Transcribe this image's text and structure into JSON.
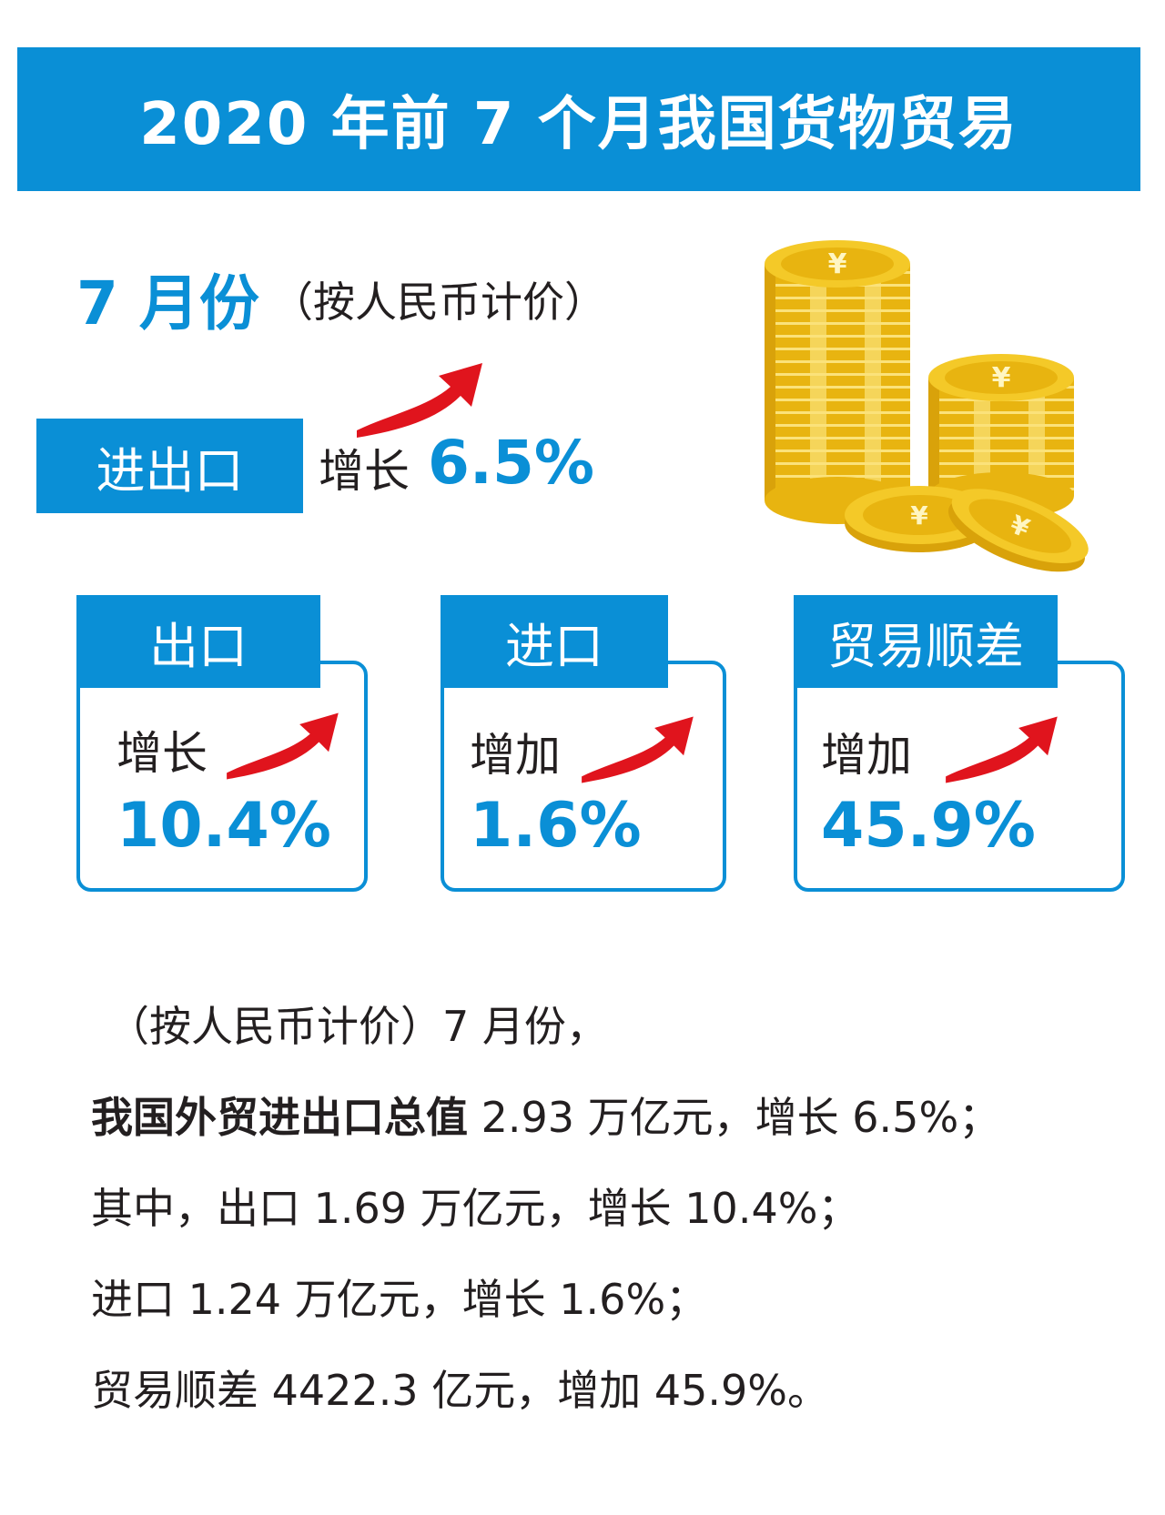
{
  "title": "2020 年前 7 个月我国货物贸易",
  "month": {
    "label": "7 月份",
    "note": "（按人民币计价）"
  },
  "total": {
    "label": "进出口",
    "verb": "增长",
    "value": "6.5%"
  },
  "cards": [
    {
      "title": "出口",
      "verb": "增长",
      "value": "10.4%"
    },
    {
      "title": "进口",
      "verb": "增加",
      "value": "1.6%"
    },
    {
      "title": "贸易顺差",
      "verb": "增加",
      "value": "45.9%"
    }
  ],
  "paragraph": {
    "line1": "（按人民币计价）7 月份，",
    "line2_bold": "我国外贸进出口总值",
    "line2_rest": " 2.93 万亿元，增长 6.5%；",
    "line3": "其中，出口 1.69 万亿元，增长 10.4%；",
    "line4": "进口 1.24 万亿元，增长 1.6%；",
    "line5": "贸易顺差 4422.3 亿元，增加 45.9%。"
  },
  "icons": [
    "yuan-coin-stack-icon",
    "red-up-arrow-icon"
  ],
  "colors": {
    "accent": "#0a8fd6",
    "arrow": "#e0141d",
    "coin": "#f2c318"
  }
}
